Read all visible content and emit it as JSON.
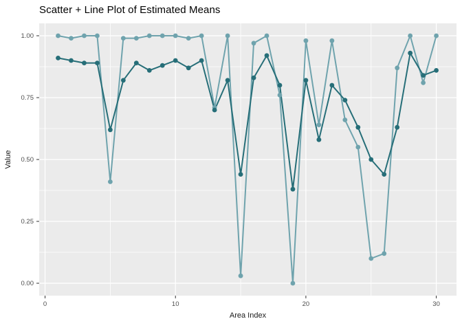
{
  "title": "Scatter + Line Plot of Estimated Means",
  "x_axis": {
    "label": "Area Index",
    "ticks": [
      {
        "label": "0",
        "value": 0
      },
      {
        "label": "10",
        "value": 10
      },
      {
        "label": "20",
        "value": 20
      },
      {
        "label": "30",
        "value": 30
      }
    ],
    "minor": [
      5,
      15,
      25
    ]
  },
  "y_axis": {
    "label": "Value",
    "ticks": [
      {
        "label": "1.00",
        "value": 1.0
      },
      {
        "label": "0.75",
        "value": 0.75
      },
      {
        "label": "0.50",
        "value": 0.5
      },
      {
        "label": "0.25",
        "value": 0.25
      },
      {
        "label": "0.00",
        "value": 0.0
      }
    ],
    "minor": [
      0.875,
      0.625,
      0.375,
      0.125
    ]
  },
  "colors": {
    "panel_background": "#EBEBEB",
    "gridline": "#FFFFFF",
    "tick_mark": "#333333",
    "tick_label": "#4D4D4D",
    "axis_title": "#1A1A1A",
    "title": "#000000",
    "series_light": "#6FA3AD",
    "series_dark": "#266E78"
  },
  "chart_data": {
    "type": "line",
    "title": "Scatter + Line Plot of Estimated Means",
    "xlabel": "Area Index",
    "ylabel": "Value",
    "x": [
      1,
      2,
      3,
      4,
      5,
      6,
      7,
      8,
      9,
      10,
      11,
      12,
      13,
      14,
      15,
      16,
      17,
      18,
      19,
      20,
      21,
      22,
      23,
      24,
      25,
      26,
      27,
      28,
      29,
      30
    ],
    "series": [
      {
        "name": "light-teal-series",
        "color": "#6FA3AD",
        "marker": "circle",
        "values": [
          1.0,
          0.99,
          1.0,
          1.0,
          0.41,
          0.99,
          0.99,
          1.0,
          1.0,
          1.0,
          0.99,
          1.0,
          0.71,
          1.0,
          0.03,
          0.97,
          1.0,
          0.76,
          0.0,
          0.98,
          0.64,
          0.98,
          0.66,
          0.55,
          0.1,
          0.12,
          0.87,
          1.0,
          0.81,
          1.0
        ]
      },
      {
        "name": "dark-teal-series",
        "color": "#266E78",
        "marker": "circle",
        "values": [
          0.91,
          0.9,
          0.89,
          0.89,
          0.62,
          0.82,
          0.89,
          0.86,
          0.88,
          0.9,
          0.87,
          0.9,
          0.7,
          0.82,
          0.44,
          0.83,
          0.92,
          0.8,
          0.38,
          0.82,
          0.58,
          0.8,
          0.74,
          0.63,
          0.5,
          0.44,
          0.63,
          0.93,
          0.84,
          0.86
        ]
      }
    ],
    "xlim": [
      -0.45,
      31.55
    ],
    "ylim": [
      -0.05,
      1.05
    ],
    "grid": true,
    "legend": false
  }
}
